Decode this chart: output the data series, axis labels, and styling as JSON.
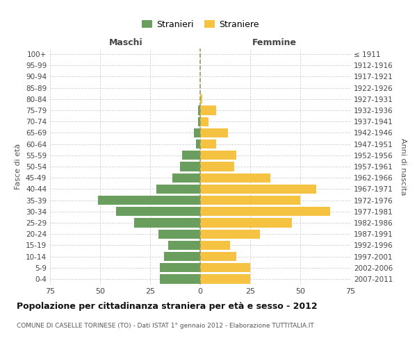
{
  "age_groups": [
    "0-4",
    "5-9",
    "10-14",
    "15-19",
    "20-24",
    "25-29",
    "30-34",
    "35-39",
    "40-44",
    "45-49",
    "50-54",
    "55-59",
    "60-64",
    "65-69",
    "70-74",
    "75-79",
    "80-84",
    "85-89",
    "90-94",
    "95-99",
    "100+"
  ],
  "birth_years": [
    "2007-2011",
    "2002-2006",
    "1997-2001",
    "1992-1996",
    "1987-1991",
    "1982-1986",
    "1977-1981",
    "1972-1976",
    "1967-1971",
    "1962-1966",
    "1957-1961",
    "1952-1956",
    "1947-1951",
    "1942-1946",
    "1937-1941",
    "1932-1936",
    "1927-1931",
    "1922-1926",
    "1917-1921",
    "1912-1916",
    "≤ 1911"
  ],
  "males": [
    20,
    20,
    18,
    16,
    21,
    33,
    42,
    51,
    22,
    14,
    10,
    9,
    2,
    3,
    1,
    1,
    0,
    0,
    0,
    0,
    0
  ],
  "females": [
    25,
    25,
    18,
    15,
    30,
    46,
    65,
    50,
    58,
    35,
    17,
    18,
    8,
    14,
    4,
    8,
    1,
    0,
    0,
    0,
    0
  ],
  "male_color": "#6a9e5e",
  "female_color": "#f5c242",
  "title": "Popolazione per cittadinanza straniera per età e sesso - 2012",
  "subtitle": "COMUNE DI CASELLE TORINESE (TO) - Dati ISTAT 1° gennaio 2012 - Elaborazione TUTTITALIA.IT",
  "xlabel_left": "Maschi",
  "xlabel_right": "Femmine",
  "ylabel_left": "Fasce di età",
  "ylabel_right": "Anni di nascita",
  "legend_male": "Stranieri",
  "legend_female": "Straniere",
  "xlim": 75,
  "background_color": "#ffffff",
  "grid_color": "#cccccc"
}
